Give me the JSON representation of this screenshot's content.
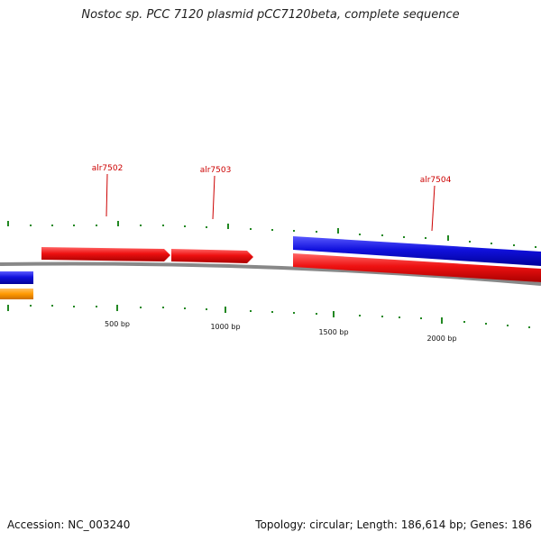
{
  "title": "Nostoc sp. PCC 7120 plasmid pCC7120beta, complete sequence",
  "footer": {
    "accession": "Accession: NC_003240",
    "summary": "Topology: circular; Length: 186,614 bp; Genes: 186"
  },
  "gene_labels": [
    "alr7502",
    "alr7503",
    "alr7504"
  ],
  "ruler_labels": [
    "500 bp",
    "1000 bp",
    "1500 bp",
    "2000 bp"
  ],
  "colors": {
    "forward_cds": "#ee1111",
    "reverse_cds": "#1111dd",
    "orange_feature": "#ff9900",
    "backbone": "#888888",
    "tick": "#228822",
    "label": "#cc0000"
  }
}
